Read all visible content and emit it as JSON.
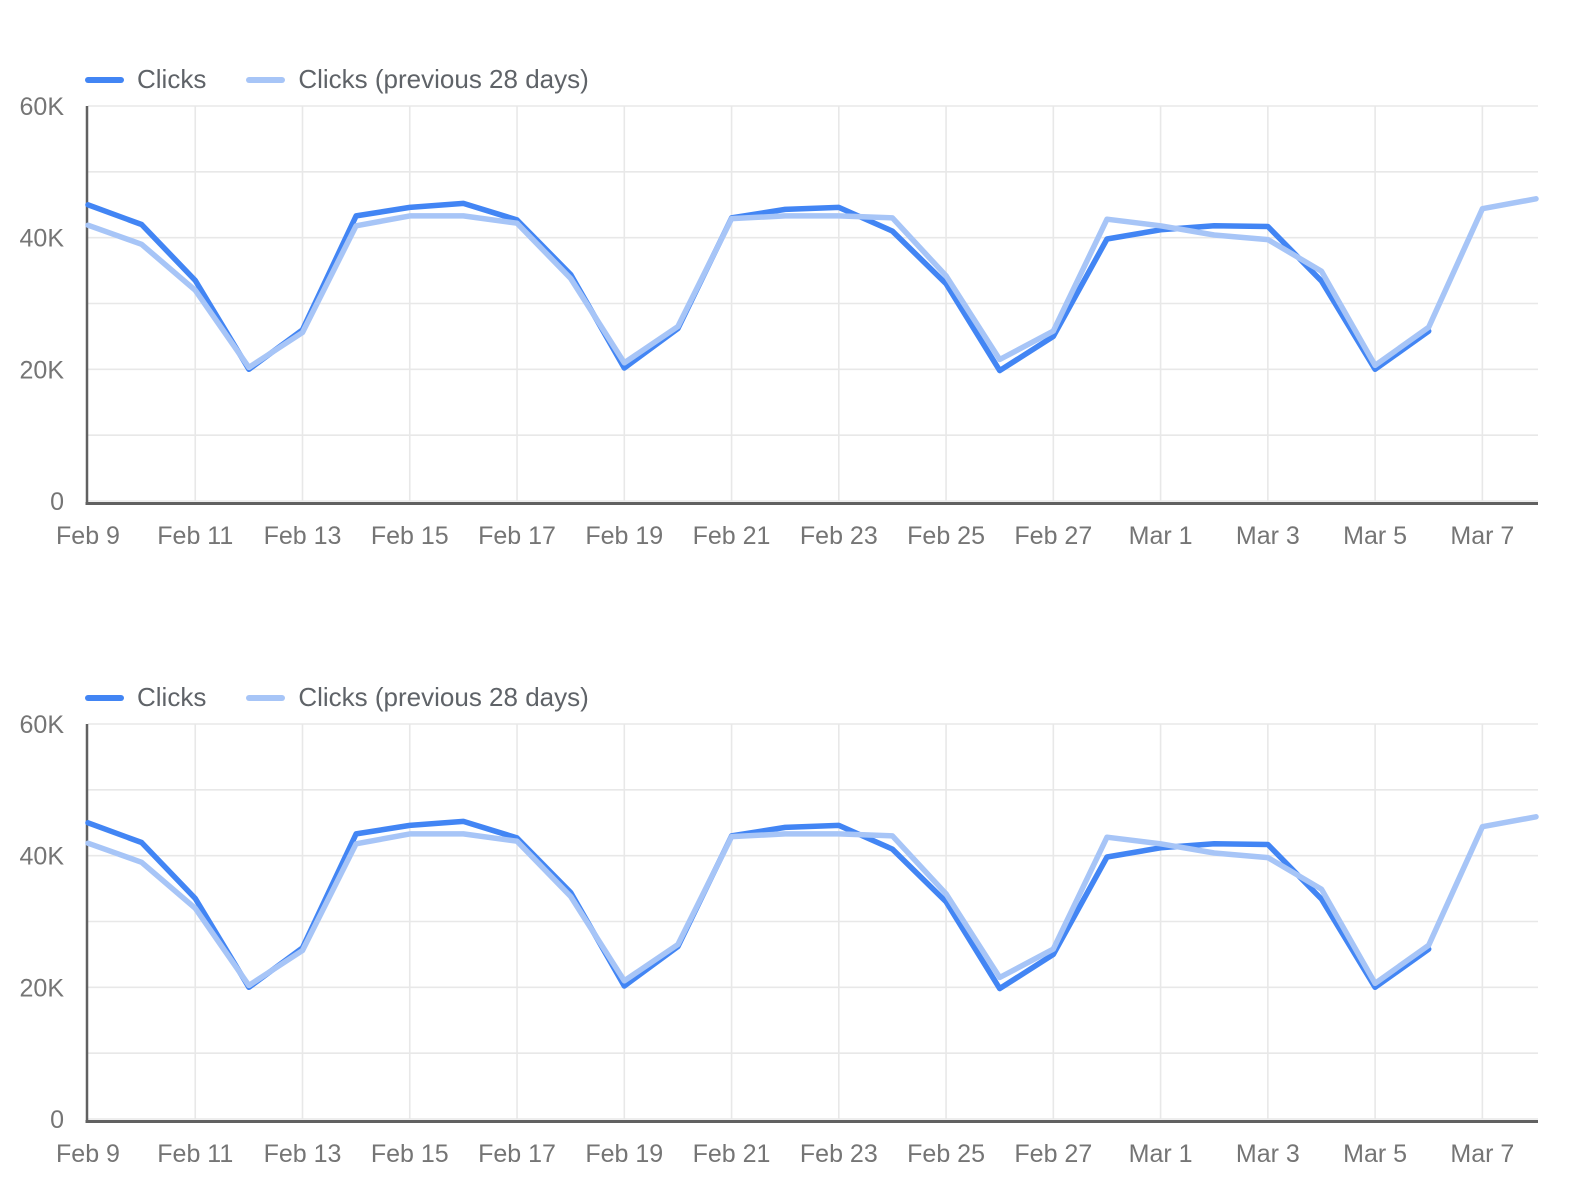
{
  "page": {
    "background": "#ffffff"
  },
  "colors": {
    "clicks": "#4285f4",
    "clicks_previous": "#a7c5f7",
    "grid": "#e8e8e8",
    "axis": "#616161",
    "axis_label": "#757575",
    "legend_text": "#5f6368"
  },
  "chart_data": [
    {
      "type": "line",
      "title": "",
      "xlabel": "",
      "ylabel": "",
      "ylim": [
        0,
        60000
      ],
      "grid": true,
      "legend_position": "top-left",
      "y_tick_labels": [
        "0",
        "20K",
        "40K",
        "60K"
      ],
      "y_tick_values": [
        0,
        20000,
        40000,
        60000
      ],
      "x_tick_labels": [
        "Feb 9",
        "Feb 11",
        "Feb 13",
        "Feb 15",
        "Feb 17",
        "Feb 19",
        "Feb 21",
        "Feb 23",
        "Feb 25",
        "Feb 27",
        "Mar 1",
        "Mar 3",
        "Mar 5",
        "Mar 7"
      ],
      "categories": [
        "Feb 9",
        "Feb 10",
        "Feb 11",
        "Feb 12",
        "Feb 13",
        "Feb 14",
        "Feb 15",
        "Feb 16",
        "Feb 17",
        "Feb 18",
        "Feb 19",
        "Feb 20",
        "Feb 21",
        "Feb 22",
        "Feb 23",
        "Feb 24",
        "Feb 25",
        "Feb 26",
        "Feb 27",
        "Feb 28",
        "Mar 1",
        "Mar 2",
        "Mar 3",
        "Mar 4",
        "Mar 5",
        "Mar 6",
        "Mar 7",
        "Mar 8"
      ],
      "series": [
        {
          "name": "Clicks",
          "color": "#4285f4",
          "values": [
            45000,
            42000,
            33500,
            20000,
            26000,
            43300,
            44600,
            45200,
            42700,
            34400,
            20200,
            26200,
            43000,
            44300,
            44600,
            41000,
            33000,
            19800,
            25000,
            39800,
            41200,
            41800,
            41700,
            33400,
            20000,
            25800,
            null,
            null
          ]
        },
        {
          "name": "Clicks (previous 28 days)",
          "color": "#a7c5f7",
          "values": [
            41900,
            39000,
            32000,
            20300,
            25600,
            41800,
            43300,
            43300,
            42200,
            33800,
            21000,
            26500,
            42900,
            43300,
            43300,
            43000,
            34200,
            21500,
            25800,
            42800,
            41800,
            40400,
            39700,
            34900,
            20600,
            26400,
            44400,
            45900
          ]
        }
      ]
    },
    {
      "type": "line",
      "title": "",
      "xlabel": "",
      "ylabel": "",
      "ylim": [
        0,
        60000
      ],
      "grid": true,
      "legend_position": "top-left",
      "y_tick_labels": [
        "0",
        "20K",
        "40K",
        "60K"
      ],
      "y_tick_values": [
        0,
        20000,
        40000,
        60000
      ],
      "x_tick_labels": [
        "Feb 9",
        "Feb 11",
        "Feb 13",
        "Feb 15",
        "Feb 17",
        "Feb 19",
        "Feb 21",
        "Feb 23",
        "Feb 25",
        "Feb 27",
        "Mar 1",
        "Mar 3",
        "Mar 5",
        "Mar 7"
      ],
      "categories": [
        "Feb 9",
        "Feb 10",
        "Feb 11",
        "Feb 12",
        "Feb 13",
        "Feb 14",
        "Feb 15",
        "Feb 16",
        "Feb 17",
        "Feb 18",
        "Feb 19",
        "Feb 20",
        "Feb 21",
        "Feb 22",
        "Feb 23",
        "Feb 24",
        "Feb 25",
        "Feb 26",
        "Feb 27",
        "Feb 28",
        "Mar 1",
        "Mar 2",
        "Mar 3",
        "Mar 4",
        "Mar 5",
        "Mar 6",
        "Mar 7",
        "Mar 8"
      ],
      "series": [
        {
          "name": "Clicks",
          "color": "#4285f4",
          "values": [
            45000,
            42000,
            33500,
            20000,
            26000,
            43300,
            44600,
            45200,
            42700,
            34400,
            20200,
            26200,
            43000,
            44300,
            44600,
            41000,
            33000,
            19800,
            25000,
            39800,
            41200,
            41800,
            41700,
            33400,
            20000,
            25800,
            null,
            null
          ]
        },
        {
          "name": "Clicks (previous 28 days)",
          "color": "#a7c5f7",
          "values": [
            41900,
            39000,
            32000,
            20300,
            25600,
            41800,
            43300,
            43300,
            42200,
            33800,
            21000,
            26500,
            42900,
            43300,
            43300,
            43000,
            34200,
            21500,
            25800,
            42800,
            41800,
            40400,
            39700,
            34900,
            20600,
            26400,
            44400,
            45900
          ]
        }
      ]
    }
  ]
}
